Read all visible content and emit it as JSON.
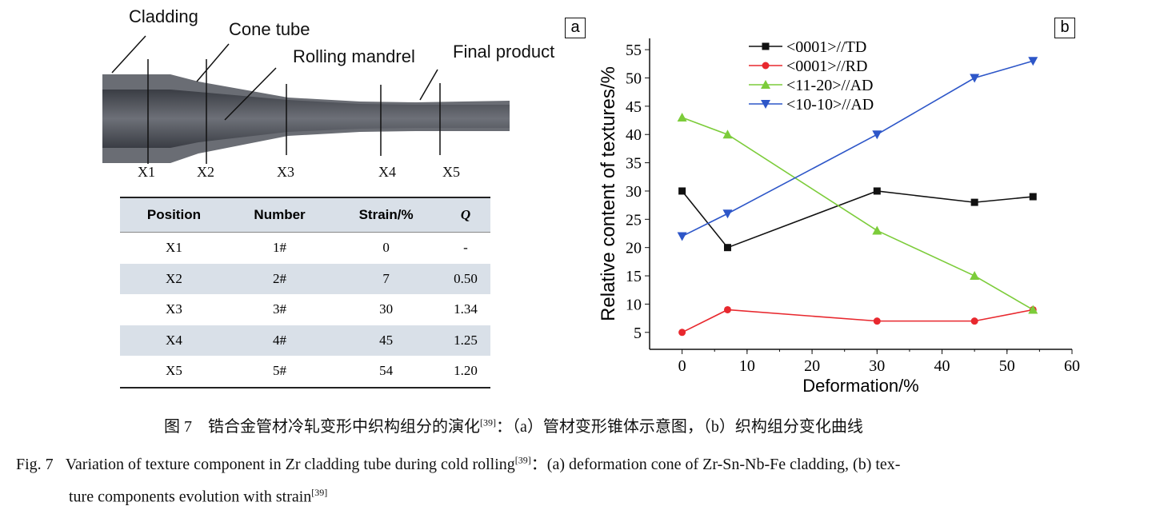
{
  "panel_a": {
    "label": "a",
    "annotations": {
      "cladding": "Cladding",
      "cone_tube": "Cone tube",
      "rolling_mandrel": "Rolling mandrel",
      "final_product": "Final product"
    },
    "positions": [
      "X1",
      "X2",
      "X3",
      "X4",
      "X5"
    ],
    "table": {
      "headers": [
        "Position",
        "Number",
        "Strain/%",
        "Q"
      ],
      "rows": [
        [
          "X1",
          "1#",
          "0",
          "-"
        ],
        [
          "X2",
          "2#",
          "7",
          "0.50"
        ],
        [
          "X3",
          "3#",
          "30",
          "1.34"
        ],
        [
          "X4",
          "4#",
          "45",
          "1.25"
        ],
        [
          "X5",
          "5#",
          "54",
          "1.20"
        ]
      ]
    }
  },
  "chart_data": {
    "type": "line",
    "panel_label": "b",
    "xlabel": "Deformation/%",
    "ylabel": "Relative content of textures/%",
    "xlim": [
      -5,
      60
    ],
    "ylim": [
      2,
      57
    ],
    "xticks": [
      0,
      10,
      20,
      30,
      40,
      50,
      60
    ],
    "yticks": [
      5,
      10,
      15,
      20,
      25,
      30,
      35,
      40,
      45,
      50,
      55
    ],
    "legend_position": "top-left",
    "grid": false,
    "x": [
      0,
      7,
      30,
      45,
      54
    ],
    "series": [
      {
        "name": "<0001>//TD",
        "color": "#111111",
        "marker": "square",
        "values": [
          30,
          20,
          30,
          28,
          29
        ]
      },
      {
        "name": "<0001>//RD",
        "color": "#e8282e",
        "marker": "circle",
        "values": [
          5,
          9,
          7,
          7,
          9
        ]
      },
      {
        "name": "<11-20>//AD",
        "color": "#7ccc3a",
        "marker": "triangle-up",
        "values": [
          43,
          40,
          23,
          15,
          9
        ]
      },
      {
        "name": "<10-10>//AD",
        "color": "#2d56c8",
        "marker": "triangle-down",
        "values": [
          22,
          26,
          40,
          50,
          53
        ]
      }
    ]
  },
  "caption": {
    "cn": "图 7　锆合金管材冷轧变形中织构组分的演化",
    "cn_ref": "[39]",
    "cn_rest": "：（a）管材变形锥体示意图，（b）织构组分变化曲线",
    "en_label": "Fig. 7",
    "en_line1": "Variation of texture component in Zr cladding tube during cold rolling",
    "en_ref1": "[39]",
    "en_line1_rest": "：(a) deformation cone of Zr-Sn-Nb-Fe cladding, (b) tex-",
    "en_line2": "ture components evolution with strain",
    "en_ref2": "[39]"
  }
}
